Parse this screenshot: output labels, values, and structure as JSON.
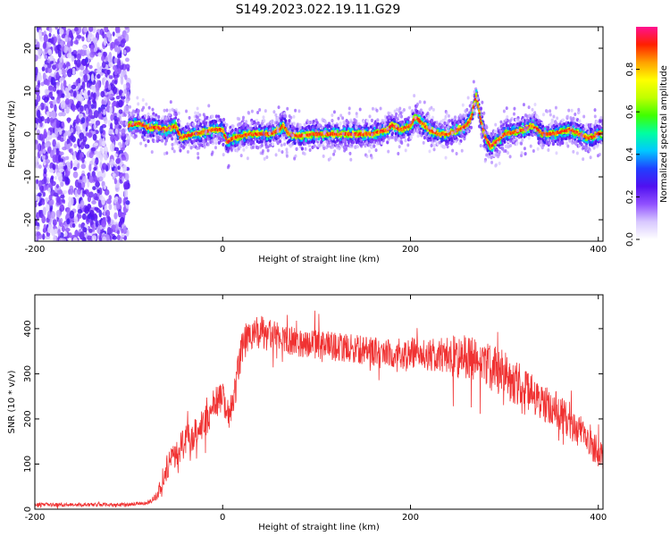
{
  "figure": {
    "title": "S149.2023.022.19.11.G29"
  },
  "chart_data": [
    {
      "type": "heatmap",
      "xlabel": "Height of straight line (km)",
      "ylabel": "Frequency (Hz)",
      "xlim": [
        -200,
        405
      ],
      "ylim": [
        -25,
        25
      ],
      "x_ticks": [
        -200,
        0,
        200,
        400
      ],
      "y_ticks": [
        -20,
        -10,
        0,
        10,
        20
      ],
      "grid": false,
      "noise_region_x": [
        -200,
        -100
      ],
      "ridge": {
        "x": [
          -100,
          -90,
          -80,
          -70,
          -60,
          -50,
          -45,
          -40,
          -30,
          -20,
          -10,
          0,
          5,
          10,
          20,
          30,
          40,
          50,
          60,
          65,
          70,
          80,
          100,
          120,
          140,
          160,
          175,
          180,
          190,
          200,
          205,
          210,
          220,
          230,
          240,
          250,
          260,
          265,
          270,
          275,
          280,
          285,
          290,
          300,
          310,
          320,
          330,
          340,
          350,
          360,
          370,
          380,
          390,
          400,
          405
        ],
        "y": [
          2,
          2.5,
          1.5,
          1.5,
          1,
          2,
          -1,
          -0.5,
          0,
          0.5,
          1,
          1,
          -2,
          -1,
          -0.5,
          0,
          0,
          0,
          1,
          2,
          0,
          -0.5,
          0,
          0,
          0,
          0,
          1,
          2,
          1,
          2,
          4,
          3,
          1,
          0,
          0,
          1,
          2,
          4,
          9,
          3,
          -1,
          -3,
          -2,
          0,
          0.5,
          1,
          2,
          0,
          0,
          0.5,
          1,
          0,
          -1,
          0,
          0
        ]
      },
      "colorbar": {
        "label": "Normalized spectral amplitude",
        "range": [
          0,
          1
        ],
        "ticks": [
          0.0,
          0.2,
          0.4,
          0.6,
          0.8
        ],
        "colormap": [
          "#ffffff",
          "#d8c8ff",
          "#9050ff",
          "#5010f0",
          "#2040ff",
          "#00c8ff",
          "#00ffa0",
          "#40ff00",
          "#c0ff00",
          "#ffff00",
          "#ffa000",
          "#ff2000",
          "#ff1090"
        ]
      }
    },
    {
      "type": "line",
      "xlabel": "Height of straight line (km)",
      "ylabel": "SNR (10 * v/v)",
      "xlim": [
        -200,
        405
      ],
      "ylim": [
        0,
        475
      ],
      "x_ticks": [
        -200,
        0,
        200,
        400
      ],
      "y_ticks": [
        0,
        100,
        200,
        300,
        400
      ],
      "grid": false,
      "color": "#f03232",
      "series": [
        {
          "x": [
            -200,
            -180,
            -160,
            -140,
            -120,
            -100,
            -90,
            -80,
            -75,
            -70,
            -65,
            -60,
            -50,
            -40,
            -30,
            -20,
            -15,
            -10,
            0,
            5,
            10,
            15,
            20,
            25,
            30,
            35,
            40,
            45,
            50,
            60,
            70,
            80,
            100,
            120,
            140,
            160,
            180,
            200,
            220,
            240,
            260,
            280,
            300,
            310,
            320,
            330,
            340,
            350,
            360,
            370,
            380,
            390,
            400,
            405
          ],
          "y": [
            10,
            10,
            10,
            10,
            10,
            10,
            12,
            15,
            20,
            30,
            60,
            90,
            120,
            150,
            170,
            190,
            200,
            230,
            250,
            210,
            230,
            280,
            360,
            380,
            380,
            385,
            390,
            385,
            385,
            380,
            375,
            370,
            365,
            360,
            355,
            350,
            345,
            345,
            340,
            340,
            335,
            320,
            300,
            285,
            270,
            255,
            240,
            220,
            210,
            190,
            170,
            150,
            130,
            115
          ],
          "noise": [
            5,
            5,
            5,
            5,
            5,
            5,
            5,
            5,
            8,
            12,
            30,
            35,
            40,
            45,
            45,
            45,
            45,
            45,
            45,
            40,
            40,
            50,
            50,
            45,
            45,
            45,
            55,
            45,
            45,
            40,
            40,
            40,
            40,
            40,
            40,
            40,
            40,
            45,
            45,
            55,
            65,
            65,
            65,
            65,
            60,
            55,
            55,
            50,
            50,
            50,
            50,
            45,
            45,
            40
          ]
        }
      ]
    }
  ]
}
